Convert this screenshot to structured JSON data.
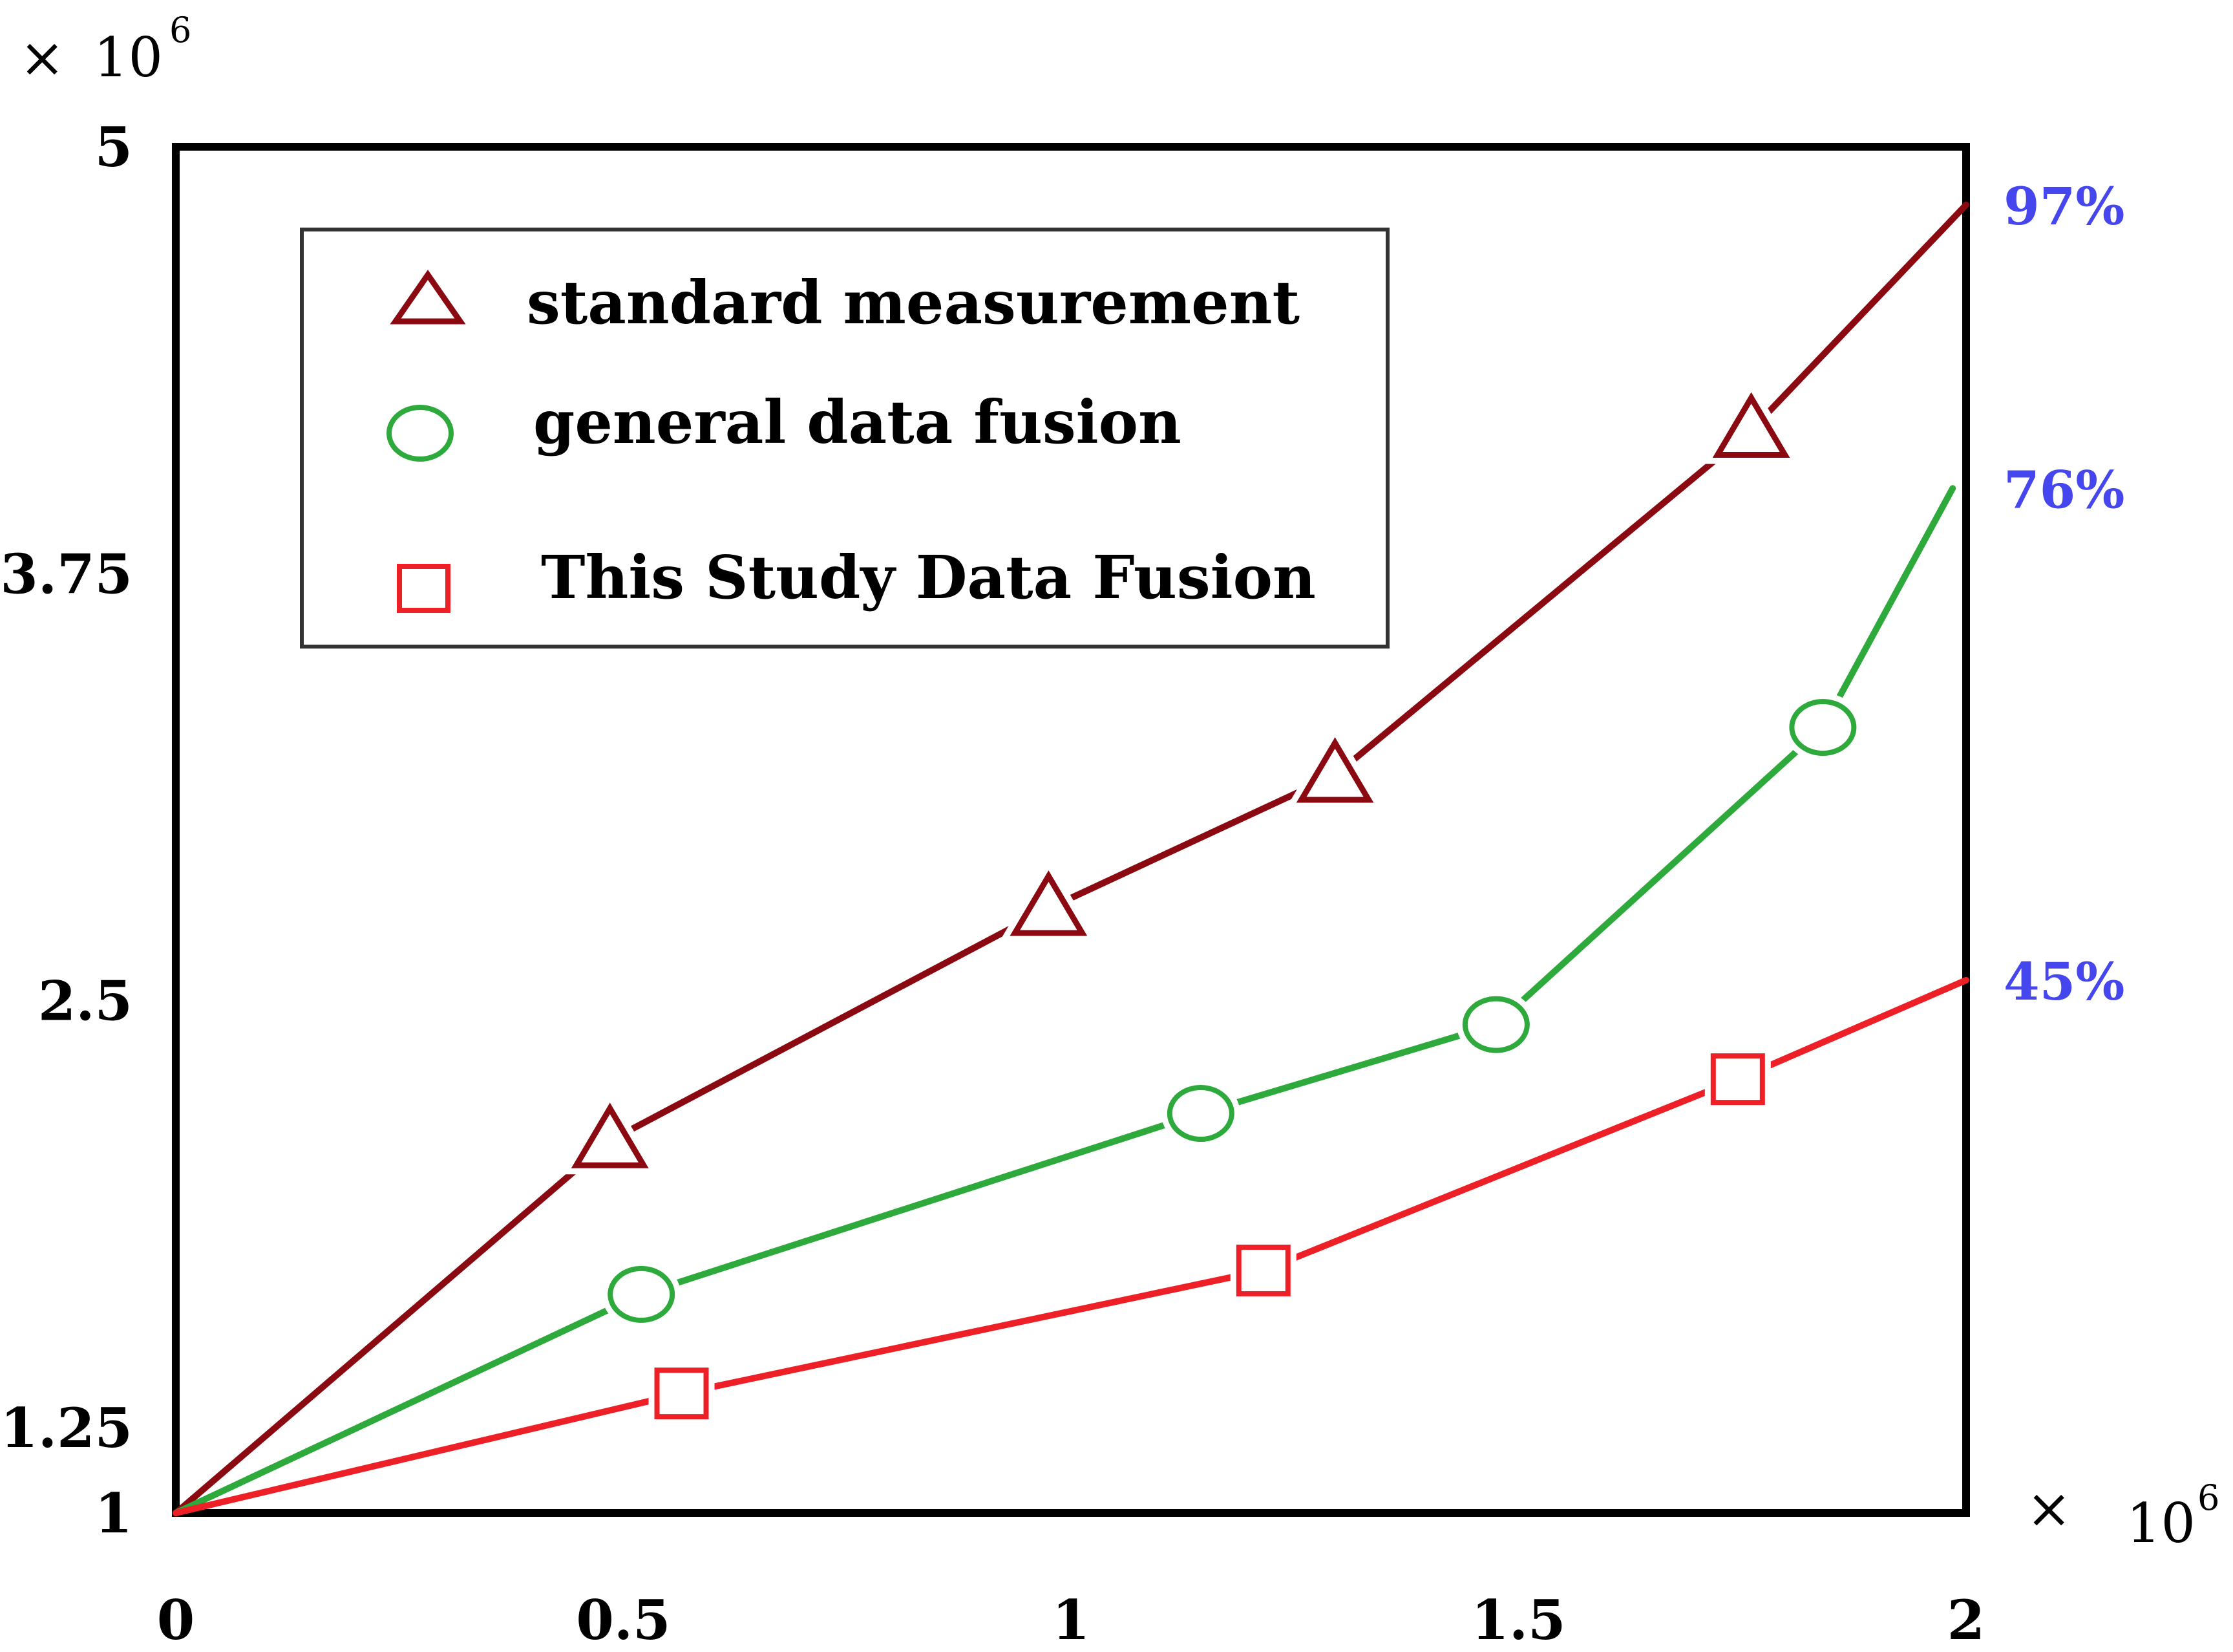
{
  "chart_data": {
    "type": "line",
    "x_multiplier": {
      "times": "×",
      "base": "10",
      "exp": "6"
    },
    "y_multiplier": {
      "times": "×",
      "base": "10",
      "exp": "6"
    },
    "xlim": [
      0,
      2
    ],
    "ylim": [
      1,
      5
    ],
    "x_ticks": [
      {
        "value": 0,
        "label": "0"
      },
      {
        "value": 0.5,
        "label": "0.5"
      },
      {
        "value": 1,
        "label": "1"
      },
      {
        "value": 1.5,
        "label": "1.5"
      },
      {
        "value": 2,
        "label": "2"
      }
    ],
    "y_ticks": [
      {
        "value": 1,
        "label": "1"
      },
      {
        "value": 1.25,
        "label": "1.25"
      },
      {
        "value": 2.5,
        "label": "2.5"
      },
      {
        "value": 3.75,
        "label": "3.75"
      },
      {
        "value": 5,
        "label": "5"
      }
    ],
    "legend_position": "top-left",
    "series": [
      {
        "name": "standard measurement",
        "color": "#8b0a12",
        "marker": "triangle",
        "end_label": "97%",
        "points": [
          [
            0,
            1
          ],
          [
            0.485,
            2.09
          ],
          [
            0.975,
            2.77
          ],
          [
            1.295,
            3.16
          ],
          [
            1.76,
            4.17
          ],
          [
            2,
            4.83
          ]
        ],
        "marker_points": [
          [
            0.485,
            2.09
          ],
          [
            0.975,
            2.77
          ],
          [
            1.295,
            3.16
          ],
          [
            1.76,
            4.17
          ]
        ]
      },
      {
        "name": "general data fusion",
        "color": "#2eaa3c",
        "marker": "circle",
        "end_label": "76%",
        "points": [
          [
            0,
            1
          ],
          [
            0.52,
            1.64
          ],
          [
            1.145,
            2.17
          ],
          [
            1.475,
            2.43
          ],
          [
            1.84,
            3.3
          ],
          [
            1.985,
            4.0
          ]
        ],
        "marker_points": [
          [
            0.52,
            1.64
          ],
          [
            1.145,
            2.17
          ],
          [
            1.475,
            2.43
          ],
          [
            1.84,
            3.3
          ]
        ]
      },
      {
        "name": "This Study Data Fusion",
        "color": "#ee2027",
        "marker": "square",
        "end_label": "45%",
        "points": [
          [
            0,
            1
          ],
          [
            0.565,
            1.35
          ],
          [
            1.215,
            1.71
          ],
          [
            1.745,
            2.27
          ],
          [
            2,
            2.56
          ]
        ],
        "marker_points": [
          [
            0.565,
            1.35
          ],
          [
            1.215,
            1.71
          ],
          [
            1.745,
            2.27
          ]
        ]
      }
    ],
    "end_label_color": "#4646ee"
  }
}
